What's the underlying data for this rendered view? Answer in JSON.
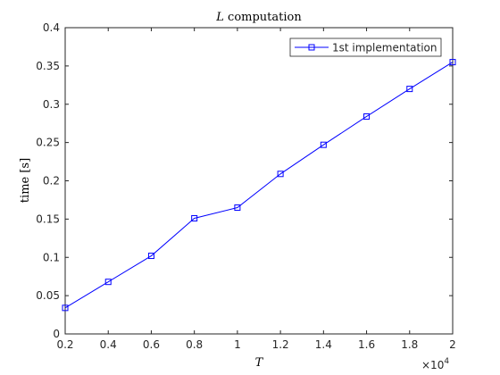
{
  "chart_data": {
    "type": "line",
    "title_var": "L",
    "title_rest": " computation",
    "xlabel": "T",
    "ylabel_text": "time ",
    "ylabel_unit": "[s]",
    "x_tick_labels": [
      "0.2",
      "0.4",
      "0.6",
      "0.8",
      "1",
      "1.2",
      "1.4",
      "1.6",
      "1.8",
      "2"
    ],
    "x_multiplier": "×10",
    "x_multiplier_exp": "4",
    "y_tick_labels": [
      "0",
      "0.05",
      "0.1",
      "0.15",
      "0.2",
      "0.25",
      "0.3",
      "0.35",
      "0.4"
    ],
    "xlim": [
      2000,
      20000
    ],
    "ylim": [
      0,
      0.4
    ],
    "grid": false,
    "legend_position": "top-right",
    "series": [
      {
        "name": "1st implementation",
        "color": "#0000ff",
        "marker": "square",
        "x": [
          2000,
          4000,
          6000,
          8000,
          10000,
          12000,
          14000,
          16000,
          18000,
          20000
        ],
        "y": [
          0.034,
          0.068,
          0.102,
          0.151,
          0.165,
          0.209,
          0.247,
          0.284,
          0.32,
          0.355
        ]
      }
    ]
  }
}
